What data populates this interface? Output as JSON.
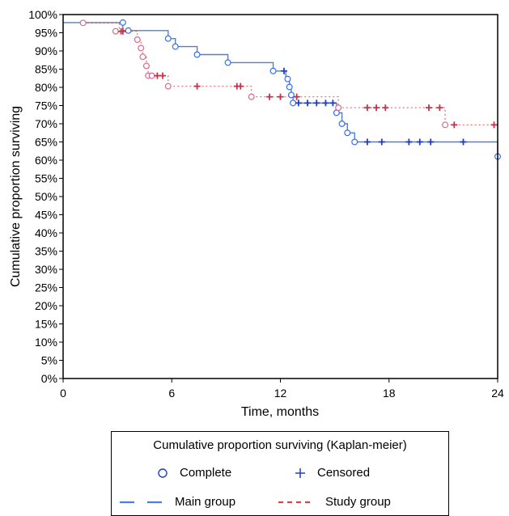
{
  "chart_data": {
    "type": "line",
    "title": "",
    "xlabel": "Time, months",
    "ylabel": "Cumulative proportion surviving",
    "xlim": [
      0,
      24
    ],
    "ylim": [
      0,
      100
    ],
    "x_ticks": [
      0,
      6,
      12,
      18,
      24
    ],
    "y_ticks": [
      0,
      5,
      10,
      15,
      20,
      25,
      30,
      35,
      40,
      45,
      50,
      55,
      60,
      65,
      70,
      75,
      80,
      85,
      90,
      95,
      100
    ],
    "y_tick_suffix": "%",
    "grid": false,
    "legend": {
      "title": "Cumulative proportion surviving (Kaplan-meier)",
      "complete_label": "Complete",
      "censored_label": "Censored",
      "main_label": "Main group",
      "study_label": "Study group",
      "placement": "bottom"
    },
    "colors": {
      "main": "#4a7fe0",
      "study": "#d9434a",
      "marker_main": "#1f3fc2",
      "marker_study": "#c9304a"
    },
    "series": [
      {
        "name": "Main group",
        "step_points": [
          [
            0,
            97.8
          ],
          [
            3.3,
            97.8
          ],
          [
            3.3,
            95.6
          ],
          [
            5.8,
            95.6
          ],
          [
            5.8,
            93.4
          ],
          [
            6.2,
            93.4
          ],
          [
            6.2,
            91.2
          ],
          [
            7.4,
            91.2
          ],
          [
            7.4,
            89.0
          ],
          [
            9.1,
            89.0
          ],
          [
            9.1,
            86.8
          ],
          [
            11.6,
            86.8
          ],
          [
            11.6,
            84.5
          ],
          [
            12.3,
            84.5
          ],
          [
            12.3,
            82.3
          ],
          [
            12.5,
            82.3
          ],
          [
            12.5,
            80.1
          ],
          [
            12.6,
            80.1
          ],
          [
            12.6,
            77.9
          ],
          [
            12.7,
            77.9
          ],
          [
            12.7,
            75.7
          ],
          [
            15.1,
            75.7
          ],
          [
            15.1,
            73.0
          ],
          [
            15.4,
            73.0
          ],
          [
            15.4,
            70.0
          ],
          [
            15.7,
            70.0
          ],
          [
            15.7,
            67.5
          ],
          [
            16.1,
            67.5
          ],
          [
            16.1,
            65.0
          ],
          [
            24,
            65.0
          ],
          [
            24,
            61.0
          ]
        ],
        "complete": [
          [
            3.3,
            97.8
          ],
          [
            3.6,
            95.6
          ],
          [
            5.8,
            93.4
          ],
          [
            6.2,
            91.2
          ],
          [
            7.4,
            89.0
          ],
          [
            9.1,
            86.8
          ],
          [
            11.6,
            84.5
          ],
          [
            12.4,
            82.3
          ],
          [
            12.5,
            80.1
          ],
          [
            12.6,
            77.9
          ],
          [
            12.7,
            75.7
          ],
          [
            15.1,
            73.0
          ],
          [
            15.4,
            70.0
          ],
          [
            15.7,
            67.5
          ],
          [
            16.1,
            65.0
          ],
          [
            24.0,
            61.0
          ]
        ],
        "censored": [
          [
            12.2,
            84.5
          ],
          [
            13.0,
            75.7
          ],
          [
            13.5,
            75.7
          ],
          [
            14.0,
            75.7
          ],
          [
            14.5,
            75.7
          ],
          [
            14.9,
            75.7
          ],
          [
            16.8,
            65.0
          ],
          [
            17.6,
            65.0
          ],
          [
            19.1,
            65.0
          ],
          [
            19.7,
            65.0
          ],
          [
            20.3,
            65.0
          ],
          [
            22.1,
            65.0
          ]
        ]
      },
      {
        "name": "Study group",
        "step_points": [
          [
            1.1,
            97.7
          ],
          [
            3.1,
            97.7
          ],
          [
            3.1,
            95.4
          ],
          [
            4.1,
            95.4
          ],
          [
            4.1,
            93.1
          ],
          [
            4.3,
            93.1
          ],
          [
            4.3,
            90.8
          ],
          [
            4.4,
            90.8
          ],
          [
            4.4,
            88.4
          ],
          [
            4.6,
            88.4
          ],
          [
            4.6,
            85.9
          ],
          [
            4.7,
            85.9
          ],
          [
            4.7,
            83.2
          ],
          [
            5.8,
            83.2
          ],
          [
            5.8,
            80.3
          ],
          [
            10.4,
            80.3
          ],
          [
            10.4,
            77.4
          ],
          [
            15.2,
            77.4
          ],
          [
            15.2,
            74.4
          ],
          [
            21.1,
            74.4
          ],
          [
            21.1,
            69.7
          ],
          [
            24,
            69.7
          ]
        ],
        "complete": [
          [
            1.1,
            97.7
          ],
          [
            2.9,
            95.4
          ],
          [
            4.1,
            93.1
          ],
          [
            4.3,
            90.8
          ],
          [
            4.4,
            88.4
          ],
          [
            4.6,
            85.9
          ],
          [
            4.7,
            83.2
          ],
          [
            4.9,
            83.2
          ],
          [
            5.8,
            80.3
          ],
          [
            10.4,
            77.4
          ],
          [
            15.2,
            74.4
          ],
          [
            21.1,
            69.7
          ]
        ],
        "censored": [
          [
            3.2,
            95.4
          ],
          [
            3.3,
            95.4
          ],
          [
            5.2,
            83.2
          ],
          [
            5.5,
            83.2
          ],
          [
            7.4,
            80.3
          ],
          [
            9.6,
            80.3
          ],
          [
            9.8,
            80.3
          ],
          [
            11.4,
            77.4
          ],
          [
            12.0,
            77.4
          ],
          [
            12.9,
            77.4
          ],
          [
            16.8,
            74.4
          ],
          [
            17.3,
            74.4
          ],
          [
            17.8,
            74.4
          ],
          [
            20.2,
            74.4
          ],
          [
            20.8,
            74.4
          ],
          [
            21.6,
            69.7
          ],
          [
            23.8,
            69.7
          ]
        ]
      }
    ]
  }
}
